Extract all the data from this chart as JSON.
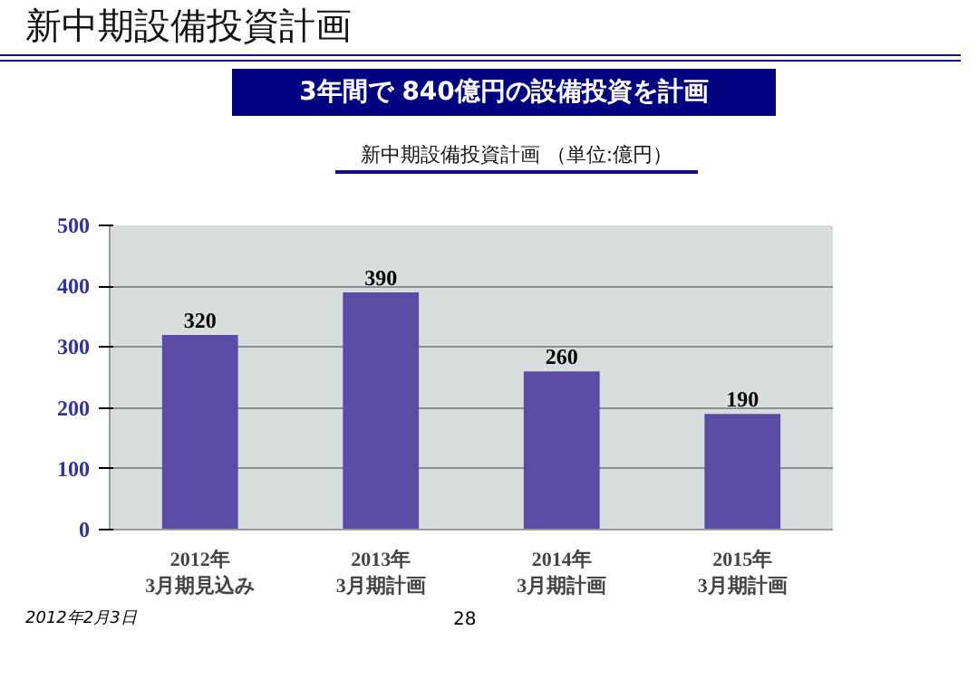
{
  "chart_data": {
    "type": "bar",
    "title": "新中期設備投資計画",
    "subtitle": "3年間で 840億円の設備投資を計画",
    "annotations": [
      "新中期設備投資計画 （単位:億円）",
      "2012年2月3日",
      "28"
    ],
    "categories": [
      "2012年\n3月期見込み",
      "2013年\n3月期計画",
      "2014年\n3月期計画",
      "2015年\n3月期計画"
    ],
    "values": [
      320,
      390,
      260,
      190
    ],
    "color": "#5b4ca6",
    "ylim": [
      0,
      500
    ],
    "yticks": [
      0,
      100,
      200,
      300,
      400,
      500
    ],
    "grid": "y",
    "data_labels": true
  }
}
